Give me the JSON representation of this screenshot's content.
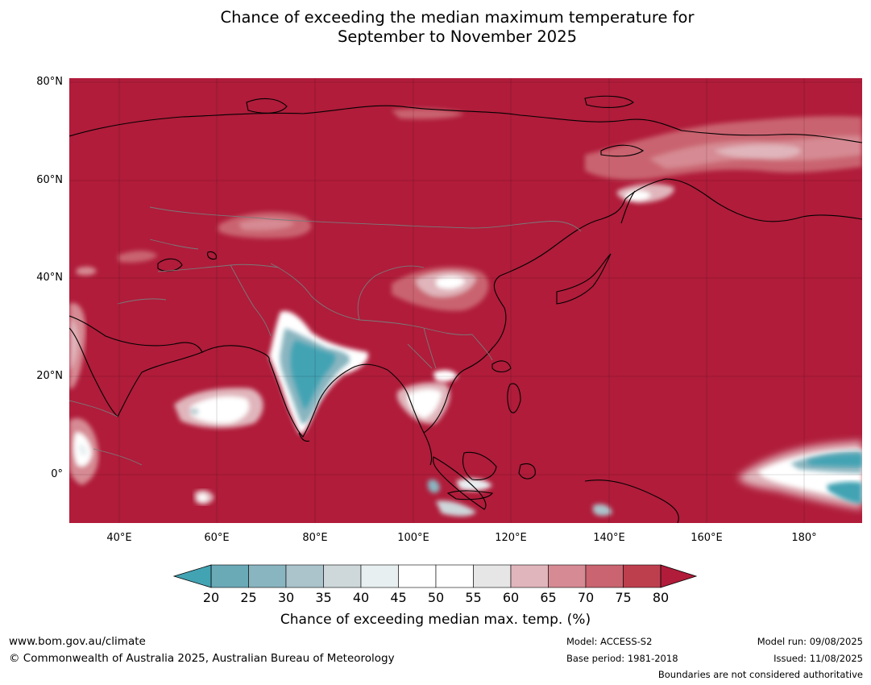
{
  "title_line1": "Chance of exceeding the median maximum temperature for",
  "title_line2": "September to November 2025",
  "lat_labels": [
    "80°N",
    "60°N",
    "40°N",
    "20°N",
    "0°"
  ],
  "lon_labels": [
    "40°E",
    "60°E",
    "80°E",
    "100°E",
    "120°E",
    "140°E",
    "160°E",
    "180°"
  ],
  "colorbar": {
    "ticks": [
      "20",
      "25",
      "30",
      "35",
      "40",
      "45",
      "50",
      "55",
      "60",
      "65",
      "70",
      "75",
      "80"
    ],
    "colors": [
      "#6aa9b6",
      "#89b5c0",
      "#abc4cb",
      "#ced7da",
      "#e8eff1",
      "#ffffff",
      "#ffffff",
      "#e6e6e6",
      "#e0b5bb",
      "#d68a93",
      "#c96470",
      "#bd3f4e"
    ],
    "under_color": "#42a3b3",
    "over_color": "#b01c3a",
    "label": "Chance of exceeding median max. temp. (%)"
  },
  "colors": {
    "dominant": "#b01c3a",
    "warm_mid": "#c96470",
    "warm_light": "#e0b5bb",
    "neutral": "#ffffff",
    "cool": "#42a3b3",
    "cool_light": "#89b5c0"
  },
  "footer": {
    "url": "www.bom.gov.au/climate",
    "copyright": "© Commonwealth of Australia 2025, Australian Bureau of Meteorology",
    "model": "Model: ACCESS-S2",
    "base_period": "Base period: 1981-2018",
    "model_run": "Model run: 09/08/2025",
    "issued": "Issued: 11/08/2025",
    "boundaries": "Boundaries are not considered authoritative"
  }
}
